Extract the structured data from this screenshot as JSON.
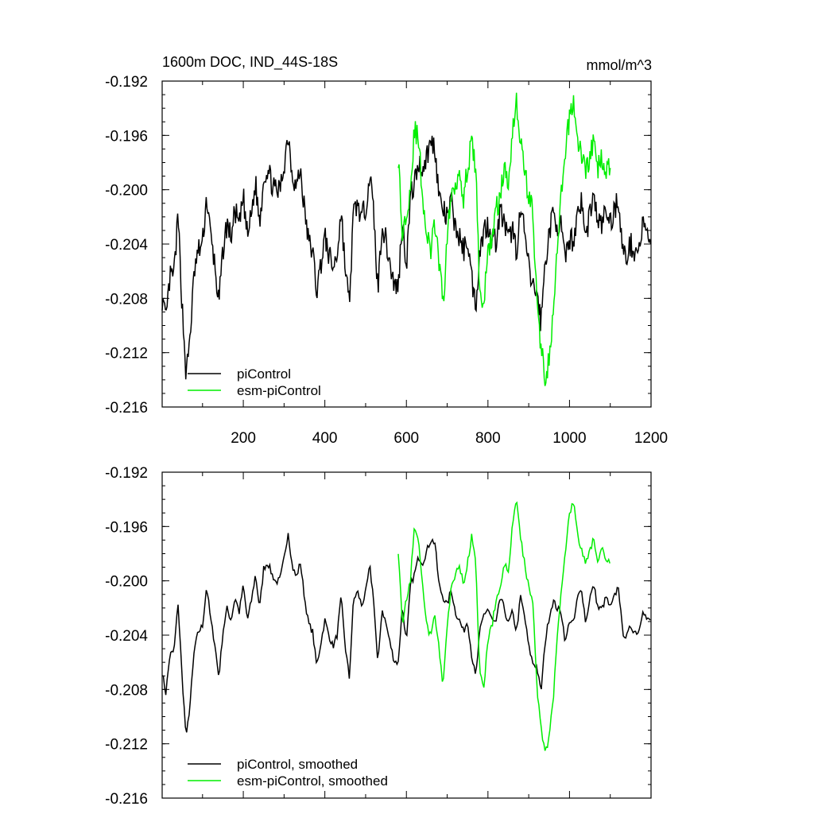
{
  "chart_data": [
    {
      "type": "line",
      "title": "1600m DOC, IND_44S-18S",
      "units": "mmol/m^3",
      "xlim": [
        1,
        1200
      ],
      "ylim": [
        -0.216,
        -0.192
      ],
      "x_ticks": [
        200,
        400,
        600,
        800,
        1000,
        1200
      ],
      "y_ticks": [
        -0.192,
        -0.196,
        -0.2,
        -0.204,
        -0.208,
        -0.212,
        -0.216
      ],
      "y_tick_labels": [
        "-0.192",
        "-0.196",
        "-0.200",
        "-0.204",
        "-0.208",
        "-0.212",
        "-0.216"
      ],
      "x_tick_labels": [
        "200",
        "400",
        "600",
        "800",
        "1000",
        "1200"
      ],
      "grid": false,
      "legend": "bottom-left",
      "series": [
        {
          "name": "piControl",
          "color": "#000000",
          "x": [
            1,
            10,
            20,
            30,
            40,
            50,
            60,
            70,
            80,
            90,
            100,
            110,
            120,
            130,
            140,
            150,
            160,
            170,
            180,
            190,
            200,
            210,
            220,
            230,
            240,
            250,
            260,
            270,
            280,
            290,
            300,
            310,
            320,
            330,
            340,
            350,
            360,
            370,
            380,
            390,
            400,
            410,
            420,
            430,
            440,
            450,
            460,
            470,
            480,
            490,
            500,
            510,
            520,
            530,
            540,
            550,
            560,
            570,
            580,
            590,
            600,
            610,
            620,
            630,
            640,
            650,
            660,
            670,
            680,
            690,
            700,
            710,
            720,
            730,
            740,
            750,
            760,
            770,
            780,
            790,
            800,
            810,
            820,
            830,
            840,
            850,
            860,
            870,
            880,
            890,
            900,
            910,
            920,
            930,
            940,
            950,
            960,
            970,
            980,
            990,
            1000,
            1010,
            1020,
            1030,
            1040,
            1050,
            1060,
            1070,
            1080,
            1090,
            1100,
            1110,
            1120,
            1130,
            1140,
            1150,
            1160,
            1170,
            1180,
            1190,
            1200
          ],
          "y": [
            -0.208,
            -0.2098,
            -0.2065,
            -0.2062,
            -0.202,
            -0.2085,
            -0.2138,
            -0.2105,
            -0.206,
            -0.2045,
            -0.204,
            -0.2005,
            -0.2035,
            -0.2055,
            -0.2085,
            -0.2045,
            -0.2025,
            -0.2035,
            -0.2015,
            -0.2028,
            -0.2005,
            -0.2035,
            -0.2018,
            -0.1995,
            -0.2025,
            -0.199,
            -0.1985,
            -0.1995,
            -0.2002,
            -0.2,
            -0.1982,
            -0.1958,
            -0.1988,
            -0.1998,
            -0.1985,
            -0.2015,
            -0.2038,
            -0.2045,
            -0.2075,
            -0.2055,
            -0.2035,
            -0.2048,
            -0.2058,
            -0.2048,
            -0.2015,
            -0.2058,
            -0.2085,
            -0.2018,
            -0.201,
            -0.2022,
            -0.2012,
            -0.1988,
            -0.2018,
            -0.2075,
            -0.2025,
            -0.2038,
            -0.2055,
            -0.207,
            -0.2072,
            -0.2022,
            -0.2055,
            -0.2005,
            -0.1995,
            -0.198,
            -0.1985,
            -0.1975,
            -0.1965,
            -0.1968,
            -0.2005,
            -0.2015,
            -0.2022,
            -0.2008,
            -0.2028,
            -0.2035,
            -0.2045,
            -0.2035,
            -0.2065,
            -0.2085,
            -0.2045,
            -0.203,
            -0.2025,
            -0.2035,
            -0.2038,
            -0.2015,
            -0.2025,
            -0.2038,
            -0.2028,
            -0.2045,
            -0.2015,
            -0.2032,
            -0.2058,
            -0.2072,
            -0.2075,
            -0.2098,
            -0.2055,
            -0.2032,
            -0.2018,
            -0.2025,
            -0.2028,
            -0.2055,
            -0.2035,
            -0.2038,
            -0.2015,
            -0.2008,
            -0.2038,
            -0.2015,
            -0.2005,
            -0.2025,
            -0.2025,
            -0.2015,
            -0.2025,
            -0.2015,
            -0.2005,
            -0.2045,
            -0.205,
            -0.204,
            -0.2045,
            -0.2045,
            -0.2025,
            -0.2035,
            -0.2035
          ],
          "note_x_dense": true
        },
        {
          "name": "esm-piControl",
          "color": "#00ee00",
          "x": [],
          "y": []
        }
      ]
    },
    {
      "type": "line",
      "title": "",
      "xlim": [
        1,
        1200
      ],
      "ylim": [
        -0.216,
        -0.192
      ],
      "y_ticks": [
        -0.192,
        -0.196,
        -0.2,
        -0.204,
        -0.208,
        -0.212,
        -0.216
      ],
      "y_tick_labels": [
        "-0.192",
        "-0.196",
        "-0.200",
        "-0.204",
        "-0.208",
        "-0.212",
        "-0.216"
      ],
      "grid": false,
      "legend": "bottom-left",
      "series": [
        {
          "name": "piControl, smoothed",
          "color": "#000000",
          "x": [],
          "y": []
        },
        {
          "name": "esm-piControl, smoothed",
          "color": "#00ee00",
          "x": [],
          "y": []
        }
      ]
    }
  ]
}
